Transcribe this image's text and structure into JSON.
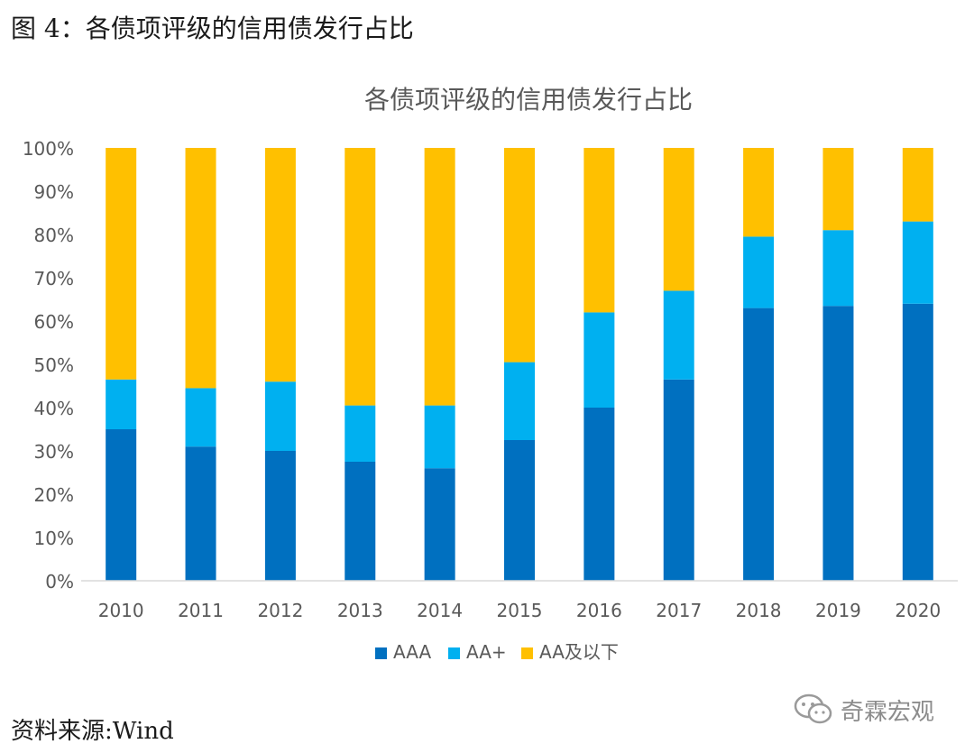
{
  "figure": {
    "caption": "图 4：各债项评级的信用债发行占比",
    "source": "资料来源:Wind",
    "watermark": "奇霖宏观"
  },
  "colors": {
    "AAA": "#0070C0",
    "AA+": "#00B0F0",
    "AA及以下": "#FFC000",
    "axis": "#d9d9d9",
    "text": "#595959"
  },
  "chart_data": {
    "type": "bar",
    "stacked": true,
    "title": "各债项评级的信用债发行占比",
    "xlabel": "",
    "ylabel": "",
    "ylim": [
      0,
      100
    ],
    "yticks": [
      "0%",
      "10%",
      "20%",
      "30%",
      "40%",
      "50%",
      "60%",
      "70%",
      "80%",
      "90%",
      "100%"
    ],
    "categories": [
      "2010",
      "2011",
      "2012",
      "2013",
      "2014",
      "2015",
      "2016",
      "2017",
      "2018",
      "2019",
      "2020"
    ],
    "series": [
      {
        "name": "AAA",
        "values": [
          35,
          31,
          30,
          27.5,
          26,
          32.5,
          40,
          46.5,
          63,
          63.5,
          64
        ]
      },
      {
        "name": "AA+",
        "values": [
          11.5,
          13.5,
          16,
          13,
          14.5,
          18,
          22,
          20.5,
          16.5,
          17.5,
          19
        ]
      },
      {
        "name": "AA及以下",
        "values": [
          53.5,
          55.5,
          54,
          59.5,
          59.5,
          49.5,
          38,
          33,
          20.5,
          19,
          17
        ]
      }
    ],
    "legend": "bottom-center"
  }
}
